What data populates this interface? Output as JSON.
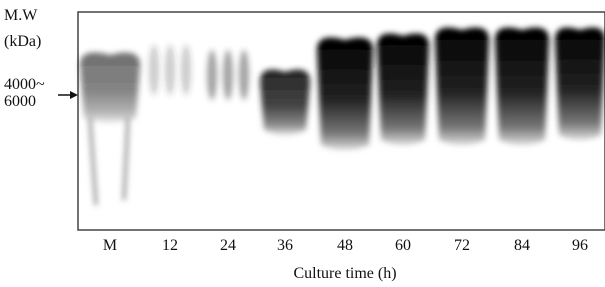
{
  "axis_label": {
    "line1": "M.W",
    "line2": "(kDa)"
  },
  "marker": {
    "line1": "4000~",
    "line2": "6000"
  },
  "lanes": [
    "M",
    "12",
    "24",
    "36",
    "48",
    "60",
    "72",
    "84",
    "96"
  ],
  "x_label": "Culture time (h)"
}
